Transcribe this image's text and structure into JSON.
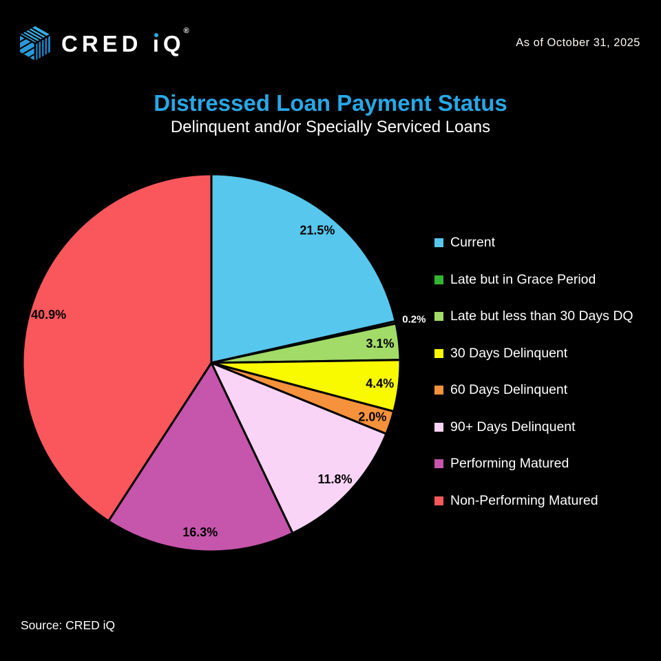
{
  "header": {
    "logo": {
      "part_cred": "CRED ",
      "part_i": "ı",
      "part_q": "Q",
      "registered": "®",
      "brand_blue": "#29ABE1"
    },
    "as_of": "As of October 31, 2025"
  },
  "title": {
    "main": "Distressed Loan Payment Status",
    "subtitle": "Delinquent and/or Specially Serviced Loans"
  },
  "chart_data": {
    "type": "pie",
    "title": "Distressed Loan Payment Status",
    "subtitle": "Delinquent and/or Specially Serviced Loans",
    "legend_position": "right",
    "start_angle": "12 o'clock, clockwise",
    "slices": [
      {
        "label": "Current",
        "value": 21.5,
        "display": "21.5%",
        "color": "#57C7ED"
      },
      {
        "label": "Late but in Grace Period",
        "value": 0.2,
        "display": "0.2%",
        "color": "#33B533",
        "label_outside": true
      },
      {
        "label": "Late but less than 30 Days DQ",
        "value": 3.1,
        "display": "3.1%",
        "color": "#A2DB68"
      },
      {
        "label": "30 Days Delinquent",
        "value": 4.4,
        "display": "4.4%",
        "color": "#F9F900"
      },
      {
        "label": "60 Days Delinquent",
        "value": 2.0,
        "display": "2.0%",
        "color": "#F6923C"
      },
      {
        "label": "90+ Days Delinquent",
        "value": 11.8,
        "display": "11.8%",
        "color": "#FAD4F6"
      },
      {
        "label": "Performing Matured",
        "value": 16.3,
        "display": "16.3%",
        "color": "#C655AC"
      },
      {
        "label": "Non-Performing Matured",
        "value": 40.9,
        "display": "40.9%",
        "color": "#F9575C"
      }
    ]
  },
  "footer": {
    "source": "Source: CRED iQ"
  },
  "colors": {
    "background": "#000000",
    "title_blue": "#27A8E6",
    "text": "#FFFFFF",
    "slice_border": "#000000"
  }
}
